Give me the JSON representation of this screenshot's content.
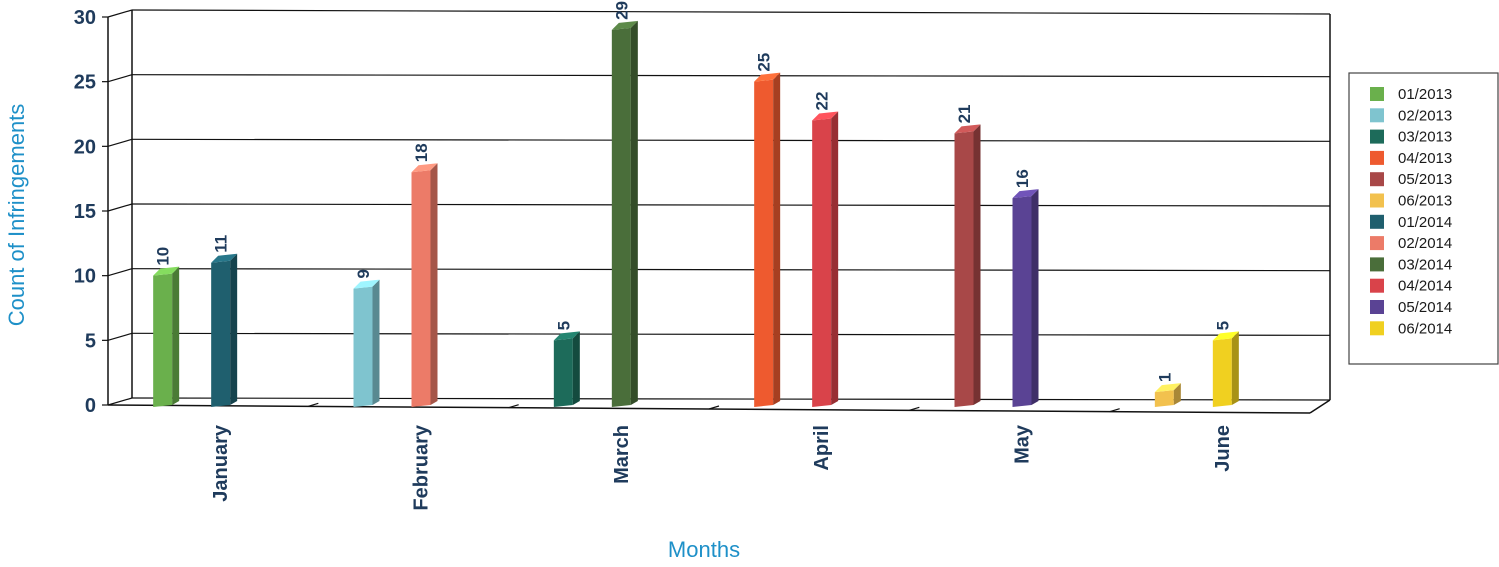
{
  "chart_data": {
    "type": "bar",
    "title": "",
    "xlabel": "Months",
    "ylabel": "Count of Infringements",
    "ylim": [
      0,
      30
    ],
    "yticks": [
      0,
      5,
      10,
      15,
      20,
      25,
      30
    ],
    "grid": true,
    "legend_position": "right",
    "categories": [
      "January",
      "February",
      "March",
      "April",
      "May",
      "June"
    ],
    "bars": [
      {
        "category": "January",
        "series": "01/2013",
        "value": 10
      },
      {
        "category": "January",
        "series": "01/2014",
        "value": 11
      },
      {
        "category": "February",
        "series": "02/2013",
        "value": 9
      },
      {
        "category": "February",
        "series": "02/2014",
        "value": 18
      },
      {
        "category": "March",
        "series": "03/2013",
        "value": 5
      },
      {
        "category": "March",
        "series": "03/2014",
        "value": 29
      },
      {
        "category": "April",
        "series": "04/2013",
        "value": 25
      },
      {
        "category": "April",
        "series": "04/2014",
        "value": 22
      },
      {
        "category": "May",
        "series": "05/2013",
        "value": 21
      },
      {
        "category": "May",
        "series": "05/2014",
        "value": 16
      },
      {
        "category": "June",
        "series": "06/2013",
        "value": 1
      },
      {
        "category": "June",
        "series": "06/2014",
        "value": 5
      }
    ],
    "legend": [
      {
        "name": "01/2013",
        "color": "#6ab04c"
      },
      {
        "name": "02/2013",
        "color": "#7fc4cf"
      },
      {
        "name": "03/2013",
        "color": "#1d6b5a"
      },
      {
        "name": "04/2013",
        "color": "#ee5a2f"
      },
      {
        "name": "05/2013",
        "color": "#a84848"
      },
      {
        "name": "06/2013",
        "color": "#f2c14e"
      },
      {
        "name": "01/2014",
        "color": "#1f5f6e"
      },
      {
        "name": "02/2014",
        "color": "#ec7b68"
      },
      {
        "name": "03/2014",
        "color": "#4a6e3a"
      },
      {
        "name": "04/2014",
        "color": "#d9434a"
      },
      {
        "name": "05/2014",
        "color": "#5a4394"
      },
      {
        "name": "06/2014",
        "color": "#f0d020"
      }
    ]
  }
}
